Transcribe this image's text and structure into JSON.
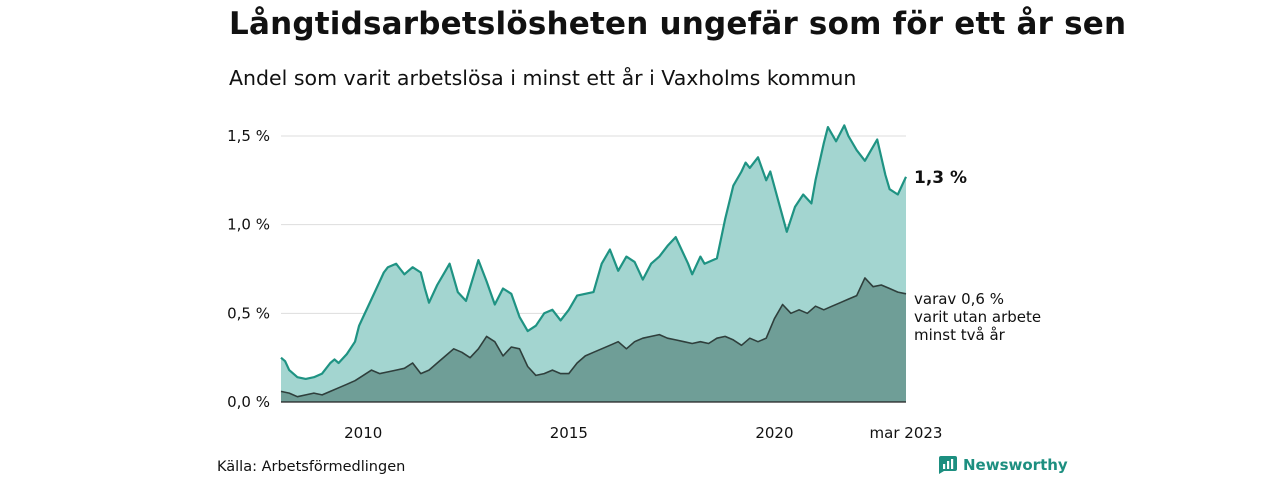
{
  "title": "Långtidsarbetslösheten ungefär som för ett år sen",
  "subtitle": "Andel som varit arbetslösa i minst ett år i Vaxholms kommun",
  "source": "Källa: Arbetsförmedlingen",
  "brand": "Newsworthy",
  "colors": {
    "area_total": "#a3d5d0",
    "line_total": "#1f9383",
    "area_sub": "#6f9e97",
    "line_sub": "#2f3f3c",
    "grid": "#dddddd",
    "brand": "#1d8f80"
  },
  "chart_data": {
    "type": "area",
    "title": "Långtidsarbetslösheten ungefär som för ett år sen",
    "subtitle": "Andel som varit arbetslösa i minst ett år i Vaxholms kommun",
    "x_unit": "year (decimal)",
    "xlim": [
      2008.0,
      2023.2
    ],
    "ylim": [
      0,
      1.5
    ],
    "y_ticks": [
      0,
      0.5,
      1.0,
      1.5
    ],
    "y_tick_labels": [
      "0,0 %",
      "0,5 %",
      "1,0 %",
      "1,5 %"
    ],
    "x_ticks": [
      2010,
      2015,
      2020,
      2023.2
    ],
    "x_tick_labels": [
      "2010",
      "2015",
      "2020",
      "mar 2023"
    ],
    "grid": true,
    "end_label": "1,3 %",
    "sub_label": [
      "varav 0,6 %",
      "varit utan arbete",
      "minst två år"
    ],
    "series": [
      {
        "name": "Andel som varit arbetslösa i minst ett år",
        "x": [
          2008.0,
          2008.1,
          2008.2,
          2008.4,
          2008.6,
          2008.8,
          2009.0,
          2009.2,
          2009.3,
          2009.4,
          2009.6,
          2009.8,
          2009.9,
          2010.0,
          2010.2,
          2010.4,
          2010.5,
          2010.6,
          2010.8,
          2010.9,
          2011.0,
          2011.2,
          2011.4,
          2011.5,
          2011.6,
          2011.8,
          2012.0,
          2012.1,
          2012.3,
          2012.5,
          2012.8,
          2013.0,
          2013.2,
          2013.4,
          2013.6,
          2013.8,
          2014.0,
          2014.2,
          2014.4,
          2014.6,
          2014.8,
          2015.0,
          2015.2,
          2015.4,
          2015.6,
          2015.8,
          2016.0,
          2016.2,
          2016.4,
          2016.6,
          2016.8,
          2017.0,
          2017.2,
          2017.4,
          2017.6,
          2017.9,
          2018.0,
          2018.2,
          2018.3,
          2018.6,
          2018.8,
          2019.0,
          2019.2,
          2019.3,
          2019.4,
          2019.6,
          2019.8,
          2019.9,
          2020.1,
          2020.3,
          2020.5,
          2020.7,
          2020.9,
          2021.0,
          2021.2,
          2021.3,
          2021.5,
          2021.7,
          2021.8,
          2022.0,
          2022.2,
          2022.3,
          2022.5,
          2022.7,
          2022.8,
          2023.0,
          2023.2
        ],
        "values": [
          0.25,
          0.23,
          0.18,
          0.14,
          0.13,
          0.14,
          0.16,
          0.22,
          0.24,
          0.22,
          0.27,
          0.34,
          0.43,
          0.48,
          0.58,
          0.68,
          0.73,
          0.76,
          0.78,
          0.75,
          0.72,
          0.76,
          0.73,
          0.64,
          0.56,
          0.66,
          0.74,
          0.78,
          0.62,
          0.57,
          0.8,
          0.68,
          0.55,
          0.64,
          0.61,
          0.48,
          0.4,
          0.43,
          0.5,
          0.52,
          0.46,
          0.52,
          0.6,
          0.61,
          0.62,
          0.78,
          0.86,
          0.74,
          0.82,
          0.79,
          0.69,
          0.78,
          0.82,
          0.88,
          0.93,
          0.78,
          0.72,
          0.82,
          0.78,
          0.81,
          1.03,
          1.22,
          1.3,
          1.35,
          1.32,
          1.38,
          1.25,
          1.3,
          1.13,
          0.96,
          1.1,
          1.17,
          1.12,
          1.25,
          1.46,
          1.55,
          1.47,
          1.56,
          1.5,
          1.42,
          1.36,
          1.4,
          1.48,
          1.28,
          1.2,
          1.17,
          1.27
        ]
      },
      {
        "name": "varav varit utan arbete minst två år",
        "x": [
          2008.0,
          2008.2,
          2008.4,
          2008.6,
          2008.8,
          2009.0,
          2009.2,
          2009.4,
          2009.6,
          2009.8,
          2010.0,
          2010.2,
          2010.4,
          2010.6,
          2010.8,
          2011.0,
          2011.2,
          2011.4,
          2011.6,
          2011.8,
          2012.0,
          2012.2,
          2012.4,
          2012.6,
          2012.8,
          2013.0,
          2013.2,
          2013.4,
          2013.6,
          2013.8,
          2014.0,
          2014.2,
          2014.4,
          2014.6,
          2014.8,
          2015.0,
          2015.2,
          2015.4,
          2015.6,
          2015.8,
          2016.0,
          2016.2,
          2016.4,
          2016.6,
          2016.8,
          2017.0,
          2017.2,
          2017.4,
          2017.6,
          2017.8,
          2018.0,
          2018.2,
          2018.4,
          2018.6,
          2018.8,
          2019.0,
          2019.2,
          2019.4,
          2019.6,
          2019.8,
          2020.0,
          2020.2,
          2020.4,
          2020.6,
          2020.8,
          2021.0,
          2021.2,
          2021.4,
          2021.6,
          2021.8,
          2022.0,
          2022.2,
          2022.4,
          2022.6,
          2022.8,
          2023.0,
          2023.2
        ],
        "values": [
          0.06,
          0.05,
          0.03,
          0.04,
          0.05,
          0.04,
          0.06,
          0.08,
          0.1,
          0.12,
          0.15,
          0.18,
          0.16,
          0.17,
          0.18,
          0.19,
          0.22,
          0.16,
          0.18,
          0.22,
          0.26,
          0.3,
          0.28,
          0.25,
          0.3,
          0.37,
          0.34,
          0.26,
          0.31,
          0.3,
          0.2,
          0.15,
          0.16,
          0.18,
          0.16,
          0.16,
          0.22,
          0.26,
          0.28,
          0.3,
          0.32,
          0.34,
          0.3,
          0.34,
          0.36,
          0.37,
          0.38,
          0.36,
          0.35,
          0.34,
          0.33,
          0.34,
          0.33,
          0.36,
          0.37,
          0.35,
          0.32,
          0.36,
          0.34,
          0.36,
          0.47,
          0.55,
          0.5,
          0.52,
          0.5,
          0.54,
          0.52,
          0.54,
          0.56,
          0.58,
          0.6,
          0.7,
          0.65,
          0.66,
          0.64,
          0.62,
          0.61
        ]
      }
    ]
  }
}
